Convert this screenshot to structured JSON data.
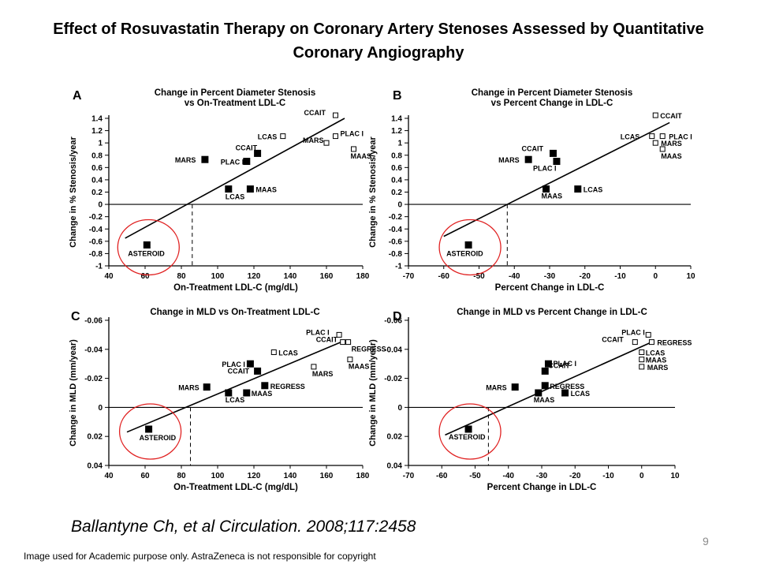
{
  "slide": {
    "title_line1": "Effect of Rosuvastatin Therapy on Coronary Artery Stenoses Assessed by Quantitative",
    "title_line2": "Coronary Angiography",
    "citation": "Ballantyne Ch, et al Circulation. 2008;117:2458",
    "page_number": "9",
    "footnote": "Image used for Academic purpose only. AstraZeneca is not responsible for copyright"
  },
  "chart_data": [
    {
      "type": "scatter",
      "panel": "A",
      "title": "Change in Percent Diameter Stenosis vs On-Treatment LDL-C",
      "title_lines": [
        "Change in Percent Diameter Stenosis",
        "vs On-Treatment LDL-C"
      ],
      "xlabel": "On-Treatment LDL-C (mg/dL)",
      "ylabel": "Change in % Stenosis/year",
      "xlim": [
        40,
        180
      ],
      "ylim": [
        -1,
        1.4
      ],
      "y_reversed": false,
      "x_ticks": [
        40,
        60,
        80,
        100,
        120,
        140,
        160,
        180
      ],
      "y_ticks": [
        -1,
        -0.8,
        -0.6,
        -0.4,
        -0.2,
        0,
        0.2,
        0.4,
        0.6,
        0.8,
        1,
        1.2,
        1.4
      ],
      "y_tick_labels": [
        "-1",
        "-0.8",
        "-0.6",
        "-0.4",
        "-0.2",
        "0",
        "0.2",
        "0.4",
        "0.6",
        "0.8",
        "1",
        "1.2",
        "1.4"
      ],
      "regression_line": [
        [
          49,
          -0.55
        ],
        [
          170,
          1.4
        ]
      ],
      "zero_crossing_x": 86,
      "highlight_circle": "ASTEROID",
      "points": [
        {
          "label": "ASTEROID",
          "x": 61,
          "y": -0.66,
          "filled": true
        },
        {
          "label": "MARS",
          "x": 93,
          "y": 0.73,
          "filled": true
        },
        {
          "label": "PLAC I",
          "x": 116,
          "y": 0.7,
          "filled": true
        },
        {
          "label": "CCAIT",
          "x": 122,
          "y": 0.83,
          "filled": true
        },
        {
          "label": "LCAS",
          "x": 106,
          "y": 0.25,
          "filled": true
        },
        {
          "label": "MAAS",
          "x": 118,
          "y": 0.25,
          "filled": true
        },
        {
          "label": "LCAS",
          "x": 136,
          "y": 1.11,
          "filled": false
        },
        {
          "label": "CCAIT",
          "x": 165,
          "y": 1.45,
          "filled": false
        },
        {
          "label": "PLAC I",
          "x": 165,
          "y": 1.11,
          "filled": false
        },
        {
          "label": "MARS",
          "x": 160,
          "y": 1.0,
          "filled": false
        },
        {
          "label": "MAAS",
          "x": 175,
          "y": 0.9,
          "filled": false
        }
      ]
    },
    {
      "type": "scatter",
      "panel": "B",
      "title": "Change in Percent Diameter Stenosis vs Percent Change in LDL-C",
      "title_lines": [
        "Change in Percent Diameter Stenosis",
        "vs Percent Change in LDL-C"
      ],
      "xlabel": "Percent Change in LDL-C",
      "ylabel": "Change in % Stenosis/year",
      "xlim": [
        -70,
        10
      ],
      "ylim": [
        -1,
        1.4
      ],
      "y_reversed": false,
      "x_ticks": [
        -70,
        -60,
        -50,
        -40,
        -30,
        -20,
        -10,
        0,
        10
      ],
      "y_ticks": [
        -1,
        -0.8,
        -0.6,
        -0.4,
        -0.2,
        0,
        0.2,
        0.4,
        0.6,
        0.8,
        1,
        1.2,
        1.4
      ],
      "y_tick_labels": [
        "-1",
        "-0.8",
        "-0.6",
        "-0.4",
        "-0.2",
        "0",
        "0.2",
        "0.4",
        "0.6",
        "0.8",
        "1",
        "1.2",
        "1.4"
      ],
      "regression_line": [
        [
          -60,
          -0.52
        ],
        [
          4,
          1.33
        ]
      ],
      "zero_crossing_x": -42,
      "highlight_circle": "ASTEROID",
      "points": [
        {
          "label": "ASTEROID",
          "x": -53,
          "y": -0.66,
          "filled": true
        },
        {
          "label": "MARS",
          "x": -36,
          "y": 0.73,
          "filled": true
        },
        {
          "label": "CCAIT",
          "x": -29,
          "y": 0.83,
          "filled": true
        },
        {
          "label": "PLAC I",
          "x": -28,
          "y": 0.7,
          "filled": true
        },
        {
          "label": "MAAS",
          "x": -31,
          "y": 0.25,
          "filled": true
        },
        {
          "label": "LCAS",
          "x": -22,
          "y": 0.25,
          "filled": true
        },
        {
          "label": "CCAIT",
          "x": 0,
          "y": 1.45,
          "filled": false
        },
        {
          "label": "LCAS",
          "x": -1,
          "y": 1.11,
          "filled": false
        },
        {
          "label": "PLAC I",
          "x": 2,
          "y": 1.11,
          "filled": false
        },
        {
          "label": "MARS",
          "x": 0,
          "y": 1.0,
          "filled": false
        },
        {
          "label": "MAAS",
          "x": 2,
          "y": 0.9,
          "filled": false
        }
      ]
    },
    {
      "type": "scatter",
      "panel": "C",
      "title": "Change in MLD vs On-Treatment LDL-C",
      "title_lines": [
        "Change in MLD vs On-Treatment LDL-C"
      ],
      "xlabel": "On-Treatment LDL-C (mg/dL)",
      "ylabel": "Change in MLD (mm/year)",
      "xlim": [
        40,
        180
      ],
      "ylim": [
        -0.06,
        0.04
      ],
      "y_reversed": true,
      "x_ticks": [
        40,
        60,
        80,
        100,
        120,
        140,
        160,
        180
      ],
      "y_ticks": [
        -0.06,
        -0.04,
        -0.02,
        0,
        0.02,
        0.04
      ],
      "y_tick_labels": [
        "-0.06",
        "-0.04",
        "-0.02",
        "0",
        "0.02",
        "0.04"
      ],
      "regression_line": [
        [
          50,
          0.017
        ],
        [
          170,
          -0.046
        ]
      ],
      "zero_crossing_x": 85,
      "highlight_circle": "ASTEROID",
      "points": [
        {
          "label": "ASTEROID",
          "x": 62,
          "y": 0.015,
          "filled": true
        },
        {
          "label": "MARS",
          "x": 94,
          "y": -0.014,
          "filled": true
        },
        {
          "label": "PLAC I",
          "x": 118,
          "y": -0.03,
          "filled": true
        },
        {
          "label": "CCAIT",
          "x": 122,
          "y": -0.025,
          "filled": true
        },
        {
          "label": "LCAS",
          "x": 106,
          "y": -0.01,
          "filled": true
        },
        {
          "label": "MAAS",
          "x": 116,
          "y": -0.01,
          "filled": true
        },
        {
          "label": "REGRESS",
          "x": 126,
          "y": -0.015,
          "filled": true
        },
        {
          "label": "PLAC I",
          "x": 167,
          "y": -0.05,
          "filled": false
        },
        {
          "label": "CCAIT",
          "x": 169,
          "y": -0.045,
          "filled": false
        },
        {
          "label": "REGRESS",
          "x": 172,
          "y": -0.045,
          "filled": false
        },
        {
          "label": "LCAS",
          "x": 131,
          "y": -0.038,
          "filled": false
        },
        {
          "label": "MAAS",
          "x": 173,
          "y": -0.033,
          "filled": false
        },
        {
          "label": "MARS",
          "x": 153,
          "y": -0.028,
          "filled": false
        }
      ]
    },
    {
      "type": "scatter",
      "panel": "D",
      "title": "Change in MLD vs Percent Change in LDL-C",
      "title_lines": [
        "Change in MLD vs Percent Change in LDL-C"
      ],
      "xlabel": "Percent Change in LDL-C",
      "ylabel": "Change in MLD (mm/year)",
      "xlim": [
        -70,
        10
      ],
      "ylim": [
        -0.06,
        0.04
      ],
      "y_reversed": true,
      "x_ticks": [
        -70,
        -60,
        -50,
        -40,
        -30,
        -20,
        -10,
        0,
        10
      ],
      "y_ticks": [
        -0.06,
        -0.04,
        -0.02,
        0,
        0.02,
        0.04
      ],
      "y_tick_labels": [
        "-0.06",
        "-0.04",
        "-0.02",
        "0",
        "0.02",
        "0.04"
      ],
      "regression_line": [
        [
          -59,
          0.019
        ],
        [
          3,
          -0.045
        ]
      ],
      "zero_crossing_x": -46,
      "highlight_circle": "ASTEROID",
      "points": [
        {
          "label": "ASTEROID",
          "x": -52,
          "y": 0.015,
          "filled": true
        },
        {
          "label": "MARS",
          "x": -38,
          "y": -0.014,
          "filled": true
        },
        {
          "label": "PLAC I",
          "x": -28,
          "y": -0.03,
          "filled": true
        },
        {
          "label": "CCAIT",
          "x": -29,
          "y": -0.025,
          "filled": true
        },
        {
          "label": "REGRESS",
          "x": -29,
          "y": -0.015,
          "filled": true
        },
        {
          "label": "MAAS",
          "x": -31,
          "y": -0.01,
          "filled": true
        },
        {
          "label": "LCAS",
          "x": -23,
          "y": -0.01,
          "filled": true
        },
        {
          "label": "PLAC I",
          "x": 2,
          "y": -0.05,
          "filled": false
        },
        {
          "label": "CCAIT",
          "x": -2,
          "y": -0.045,
          "filled": false
        },
        {
          "label": "REGRESS",
          "x": 3,
          "y": -0.045,
          "filled": false
        },
        {
          "label": "LCAS",
          "x": 0,
          "y": -0.038,
          "filled": false
        },
        {
          "label": "MAAS",
          "x": 0,
          "y": -0.033,
          "filled": false
        },
        {
          "label": "MARS",
          "x": 0,
          "y": -0.028,
          "filled": false
        }
      ]
    }
  ]
}
